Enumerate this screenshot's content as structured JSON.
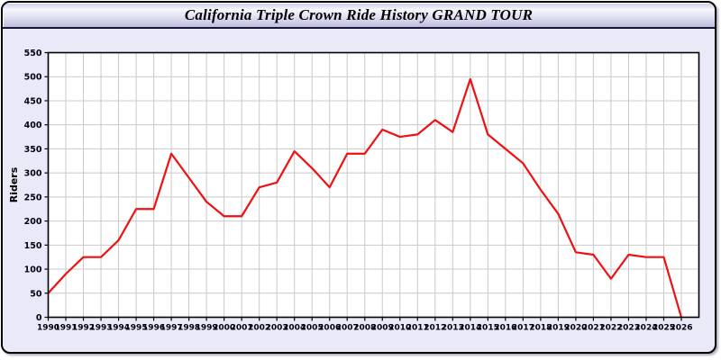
{
  "window": {
    "title": "California Triple Crown Ride History GRAND TOUR"
  },
  "chart_data": {
    "type": "line",
    "title": "California Triple Crown Ride History GRAND TOUR",
    "xlabel": "",
    "ylabel": "Riders",
    "series_name": "Riders",
    "x": [
      1990,
      1991,
      1992,
      1993,
      1994,
      1995,
      1996,
      1997,
      1998,
      1999,
      2000,
      2001,
      2002,
      2003,
      2004,
      2005,
      2006,
      2007,
      2008,
      2009,
      2010,
      2011,
      2012,
      2013,
      2014,
      2015,
      2016,
      2017,
      2018,
      2019,
      2020,
      2021,
      2022,
      2023,
      2024,
      2025,
      2026
    ],
    "values": [
      50,
      90,
      125,
      125,
      160,
      225,
      225,
      340,
      290,
      240,
      210,
      210,
      270,
      280,
      345,
      310,
      270,
      340,
      340,
      390,
      375,
      380,
      410,
      385,
      495,
      380,
      350,
      320,
      265,
      215,
      135,
      130,
      80,
      130,
      125,
      125,
      0
    ],
    "xticklabels": [
      "1990",
      "1991",
      "1992",
      "1993",
      "1994",
      "1995",
      "1996",
      "1997",
      "1998",
      "1999",
      "2000",
      "2001",
      "2002",
      "2003",
      "2004",
      "2005",
      "2006",
      "2007",
      "2008",
      "2009",
      "2010",
      "2011",
      "2012",
      "2013",
      "2014",
      "2015",
      "2016",
      "2017",
      "2018",
      "2019",
      "2020",
      "2021",
      "2022",
      "2023",
      "2024",
      "2025",
      "2026"
    ],
    "yticks": [
      0,
      50,
      100,
      150,
      200,
      250,
      300,
      350,
      400,
      450,
      500,
      550
    ],
    "ylim": [
      0,
      550
    ],
    "xlim": [
      1990,
      2027
    ],
    "grid": true,
    "legend": "none",
    "line_color": "#ee1111",
    "grid_color": "#c9c9c9",
    "plot_bg": "#ffffff",
    "plot_border_color": "#000000",
    "tick_label_color": "#000010",
    "outer_bg": "#e9e9f7"
  }
}
